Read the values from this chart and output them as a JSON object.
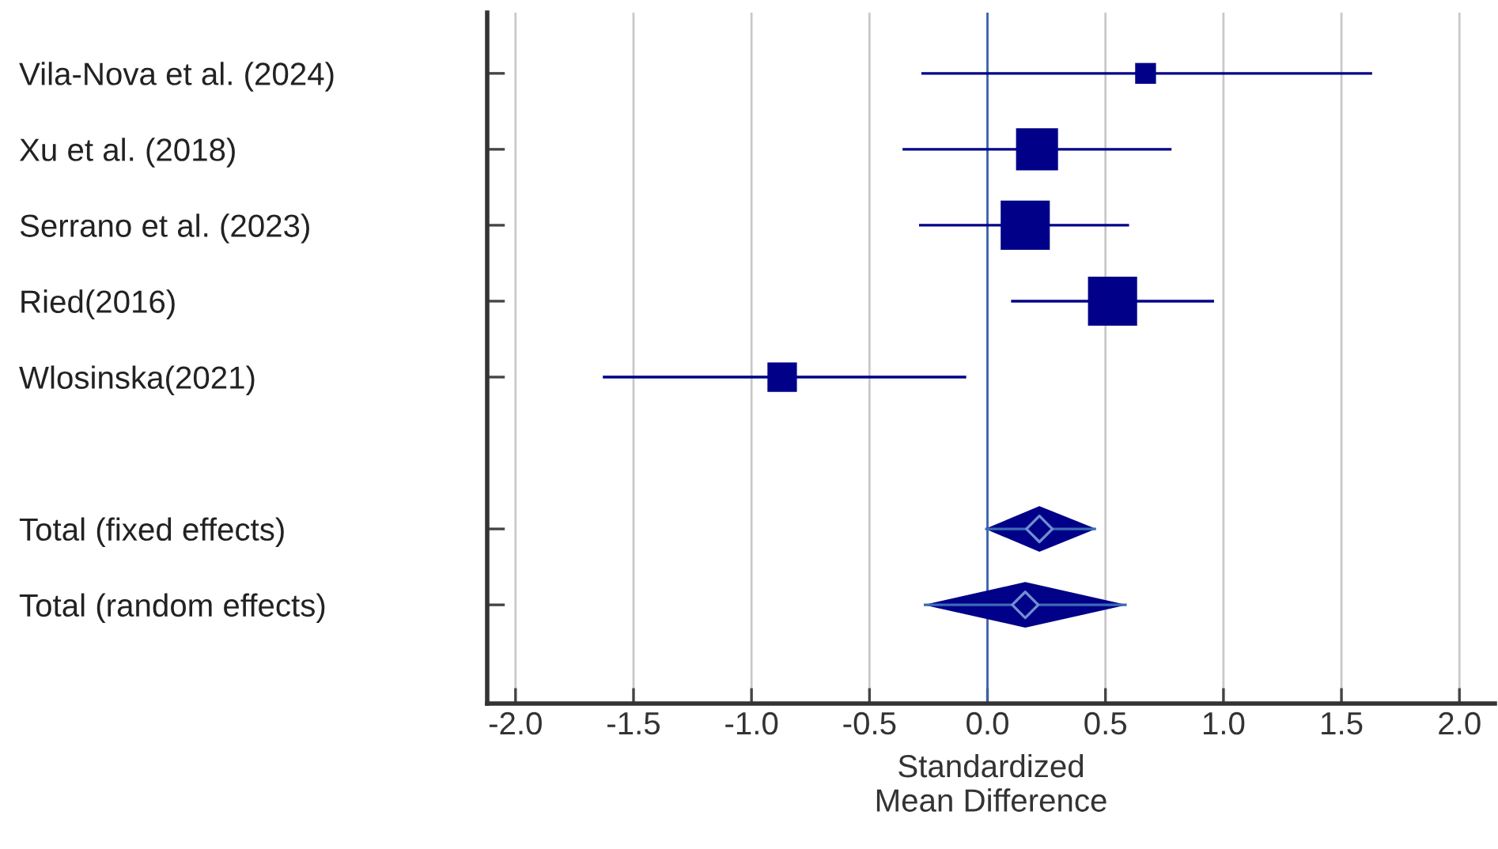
{
  "chart_data": {
    "type": "scatter",
    "orientation": "horizontal",
    "xlabel": "Standardized\nMean Difference",
    "categories": [
      "Vila-Nova et al. (2024)",
      "Xu et al. (2018)",
      "Serrano et al. (2023)",
      "Ried(2016)",
      "Wlosinska(2021)",
      null,
      "Total (fixed effects)",
      "Total (random effects)"
    ],
    "series": [
      {
        "type": "bubble",
        "marker": "square",
        "color": "#000088",
        "values": [
          0.67,
          0.21,
          0.16,
          0.53,
          -0.87,
          null,
          null,
          null
        ],
        "errors": [
          [
            -0.28,
            1.63
          ],
          [
            -0.36,
            0.78
          ],
          [
            -0.29,
            0.6
          ],
          [
            0.1,
            0.96
          ],
          [
            -1.63,
            -0.09
          ],
          null,
          null,
          null
        ],
        "sizes": [
          0.18,
          0.73,
          1,
          1,
          0.36,
          null,
          null,
          null
        ]
      },
      {
        "type": "scatter",
        "marker": "diamond",
        "color": "#000088",
        "values": [
          null,
          null,
          null,
          null,
          null,
          null,
          0.22,
          0.16
        ],
        "errors": [
          null,
          null,
          null,
          null,
          null,
          null,
          [
            -0.01,
            0.46
          ],
          [
            -0.27,
            0.59
          ]
        ]
      }
    ],
    "xlim": [
      -2.12,
      2.15
    ],
    "xticks": [
      {
        "value": -2,
        "label": "-2.0"
      },
      {
        "value": -1.5,
        "label": "-1.5"
      },
      {
        "value": -1,
        "label": "-1.0"
      },
      {
        "value": -0.5,
        "label": "-0.5"
      },
      {
        "value": 0,
        "label": "0.0"
      },
      {
        "value": 0.5,
        "label": "0.5"
      },
      {
        "value": 1,
        "label": "1.0"
      },
      {
        "value": 1.5,
        "label": "1.5"
      },
      {
        "value": 2,
        "label": "2.0"
      }
    ],
    "ref_lines": [
      {
        "axis": "x",
        "value": 0,
        "color": "#3a62b0"
      }
    ],
    "grid": "x"
  }
}
